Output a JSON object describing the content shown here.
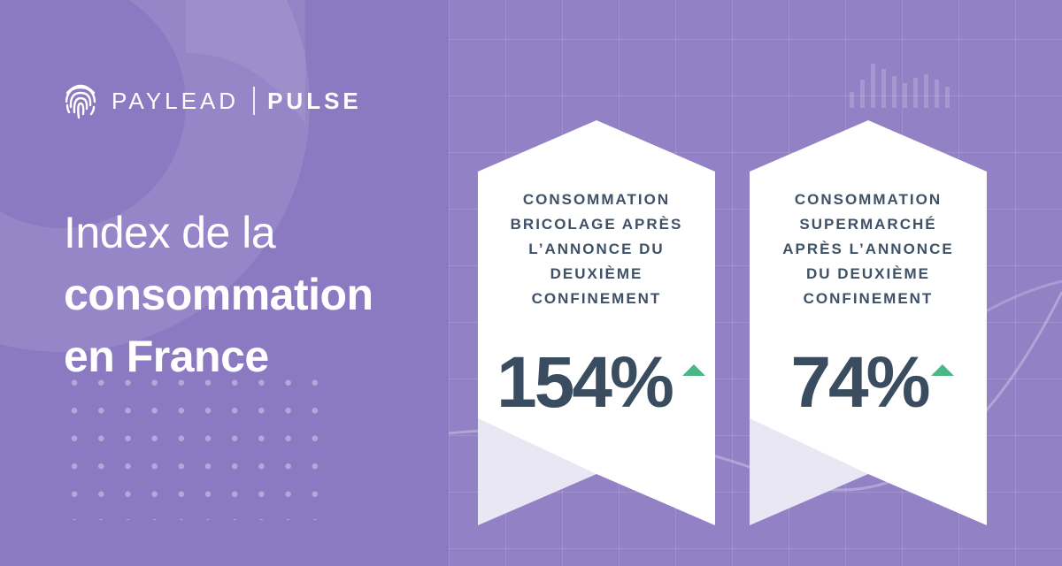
{
  "brand": {
    "name": "PAYLEAD",
    "product": "PULSE"
  },
  "headline": {
    "line1": "Index de la",
    "line2": "consommation",
    "line3": "en France"
  },
  "cards": [
    {
      "label_lines": [
        "CONSOMMATION",
        "BRICOLAGE APRÈS",
        "L’ANNONCE DU",
        "DEUXIÈME",
        "CONFINEMENT"
      ],
      "value": "154%",
      "trend": "up"
    },
    {
      "label_lines": [
        "CONSOMMATION",
        "SUPERMARCHÉ",
        "APRÈS L’ANNONCE",
        "DU DEUXIÈME",
        "CONFINEMENT"
      ],
      "value": "74%",
      "trend": "up"
    }
  ],
  "colors": {
    "background": "#8b79c1",
    "card": "#ffffff",
    "text_dark": "#3f5166",
    "trend_up": "#4ab886"
  },
  "icons": [
    "fingerprint-icon",
    "trend-up-arrow-icon"
  ]
}
